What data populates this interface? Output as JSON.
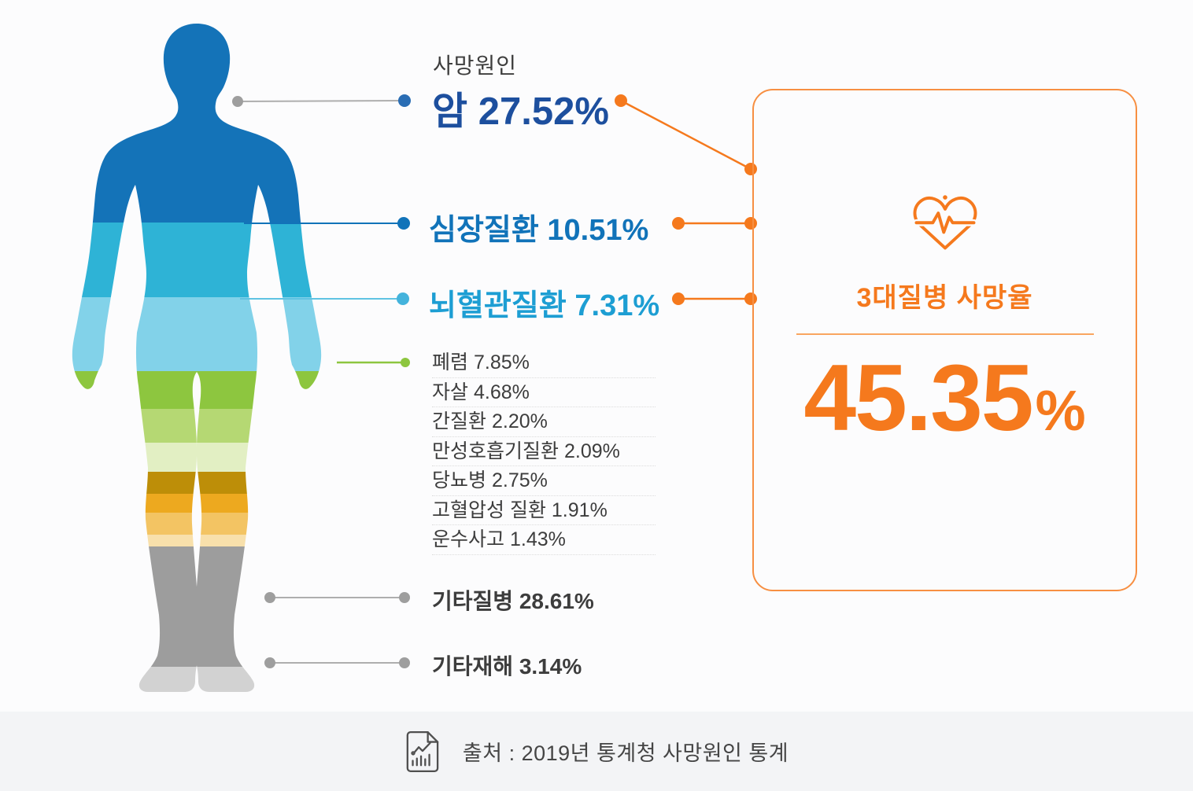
{
  "colors": {
    "page_bg": "#fcfcfd",
    "accent_orange": "#f5791d",
    "card_border": "#f78f42",
    "divider_orange": "#f9a55f",
    "cancer_navy": "#1d4f9e",
    "heart_blue": "#1173b9",
    "brain_blue": "#1d9ed3",
    "brain_line": "#5fc3e3",
    "brain_dot": "#44b3dc",
    "dot_cancer": "#2a6db4",
    "pneumonia_green": "#8dc63f",
    "text_dark": "#3d3d3d",
    "line_gray": "#aeaeae",
    "dot_gray": "#9e9e9e",
    "separator": "#dcdcdc",
    "footer_bg": "#f3f4f6",
    "footer_icon": "#4f4f4f",
    "footer_text": "#454545"
  },
  "body": {
    "alt": "human-body-silhouette",
    "bands": [
      {
        "cause": "암",
        "color": "#1473b8",
        "from": 0,
        "to": 255
      },
      {
        "cause": "심장질환",
        "color": "#2eb3d6",
        "from": 255,
        "to": 350
      },
      {
        "cause": "뇌혈관질환",
        "color": "#82d2e9",
        "from": 350,
        "to": 444
      },
      {
        "cause": "폐렴",
        "color": "#8dc63f",
        "from": 444,
        "to": 492
      },
      {
        "cause": "자살",
        "color": "#b5d873",
        "from": 492,
        "to": 535
      },
      {
        "cause": "간질환",
        "color": "#e2efc3",
        "from": 535,
        "to": 572
      },
      {
        "cause": "만성호흡기질환",
        "color": "#bd8e08",
        "from": 572,
        "to": 600
      },
      {
        "cause": "당뇨병",
        "color": "#eda91f",
        "from": 600,
        "to": 624
      },
      {
        "cause": "고혈압성 질환",
        "color": "#f3c463",
        "from": 624,
        "to": 652
      },
      {
        "cause": "운수사고",
        "color": "#f8e0ab",
        "from": 652,
        "to": 667
      },
      {
        "cause": "기타질병",
        "color": "#9d9d9d",
        "from": 667,
        "to": 820
      },
      {
        "cause": "기타재해",
        "color": "#d2d2d2",
        "from": 820,
        "to": 860
      }
    ]
  },
  "main": {
    "header": "사망원인",
    "cancer": {
      "name": "암",
      "pct": "27.52%"
    },
    "heart": {
      "name": "심장질환",
      "pct": "10.51%"
    },
    "brain": {
      "name": "뇌혈관질환",
      "pct": "7.31%"
    },
    "minor": [
      {
        "name": "폐렴",
        "pct": "7.85%"
      },
      {
        "name": "자살",
        "pct": "4.68%"
      },
      {
        "name": "간질환",
        "pct": "2.20%"
      },
      {
        "name": "만성호흡기질환",
        "pct": "2.09%"
      },
      {
        "name": "당뇨병",
        "pct": "2.75%"
      },
      {
        "name": "고혈압성 질환",
        "pct": "1.91%"
      },
      {
        "name": "운수사고",
        "pct": "1.43%"
      }
    ],
    "other_disease": {
      "name": "기타질병",
      "pct": "28.61%"
    },
    "other_accident": {
      "name": "기타재해",
      "pct": "3.14%"
    }
  },
  "card": {
    "icon": "heartbeat-heart-icon",
    "title": "3대질병 사망율",
    "value": "45.35",
    "unit": "%"
  },
  "footer": {
    "icon": "chart-document-icon",
    "source": "출처 : 2019년 통계청 사망원인 통계"
  },
  "chart_data": {
    "type": "bar",
    "title": "사망원인 (2019년 통계청 사망원인 통계)",
    "categories": [
      "암",
      "심장질환",
      "뇌혈관질환",
      "폐렴",
      "자살",
      "간질환",
      "만성호흡기질환",
      "당뇨병",
      "고혈압성 질환",
      "운수사고",
      "기타질병",
      "기타재해"
    ],
    "values": [
      27.52,
      10.51,
      7.31,
      7.85,
      4.68,
      2.2,
      2.09,
      2.75,
      1.91,
      1.43,
      28.61,
      3.14
    ],
    "unit": "%",
    "annotations": [
      {
        "label": "3대질병 사망율",
        "value": 45.35,
        "unit": "%"
      }
    ],
    "source": "출처 : 2019년 통계청 사망원인 통계",
    "legend_position": "none",
    "grid": false
  }
}
